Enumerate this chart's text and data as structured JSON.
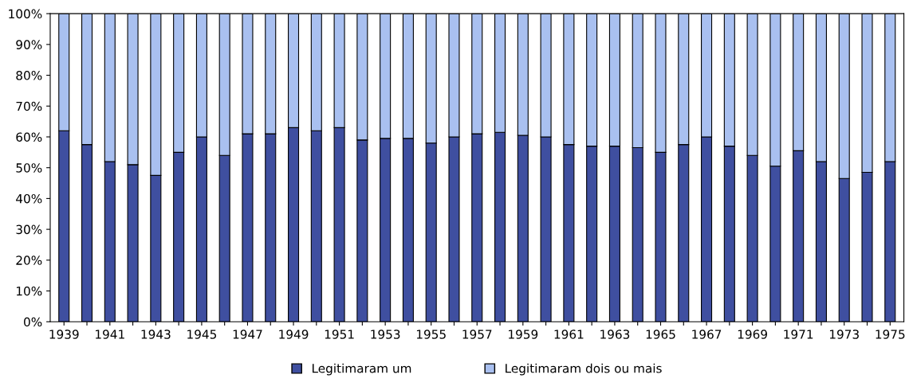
{
  "chart_data": {
    "type": "bar",
    "stacked": true,
    "categories": [
      "1939",
      null,
      "1941",
      null,
      "1943",
      null,
      "1945",
      null,
      "1947",
      null,
      "1949",
      null,
      "1951",
      null,
      "1953",
      null,
      "1955",
      null,
      "1957",
      null,
      "1959",
      null,
      "1961",
      null,
      "1963",
      null,
      "1965",
      null,
      "1967",
      null,
      "1969",
      null,
      "1971",
      null,
      "1973",
      null,
      "1975"
    ],
    "series": [
      {
        "name": "Legitimaram um",
        "color": "#3f4fa0",
        "values": [
          62,
          57.5,
          52,
          51,
          47.5,
          55,
          60,
          54,
          61,
          61,
          63,
          62,
          63,
          59,
          59.5,
          59.5,
          58,
          60,
          61,
          61.5,
          60.5,
          60,
          57.5,
          57,
          57,
          56.5,
          55,
          57.5,
          60,
          57,
          54,
          50.5,
          55.5,
          52,
          46.5,
          48.5,
          52
        ]
      },
      {
        "name": "Legitimaram dois ou mais",
        "color": "#a9c0f0",
        "values": [
          38,
          42.5,
          48,
          49,
          52.5,
          45,
          40,
          46,
          39,
          39,
          37,
          38,
          37,
          41,
          40.5,
          40.5,
          42,
          40,
          39,
          38.5,
          39.5,
          40,
          42.5,
          43,
          43,
          43.5,
          45,
          42.5,
          40,
          43,
          46,
          49.5,
          44.5,
          48,
          53.5,
          51.5,
          48
        ]
      }
    ],
    "ylim": [
      0,
      100
    ],
    "yticks": [
      {
        "value": 0,
        "label": "0%"
      },
      {
        "value": 10,
        "label": "10%"
      },
      {
        "value": 20,
        "label": "20%"
      },
      {
        "value": 30,
        "label": "30%"
      },
      {
        "value": 40,
        "label": "40%"
      },
      {
        "value": 50,
        "label": "50%"
      },
      {
        "value": 60,
        "label": "60%"
      },
      {
        "value": 70,
        "label": "70%"
      },
      {
        "value": 80,
        "label": "80%"
      },
      {
        "value": 90,
        "label": "90%"
      },
      {
        "value": 100,
        "label": "100%"
      }
    ],
    "legend": "bottom",
    "grid": false
  }
}
